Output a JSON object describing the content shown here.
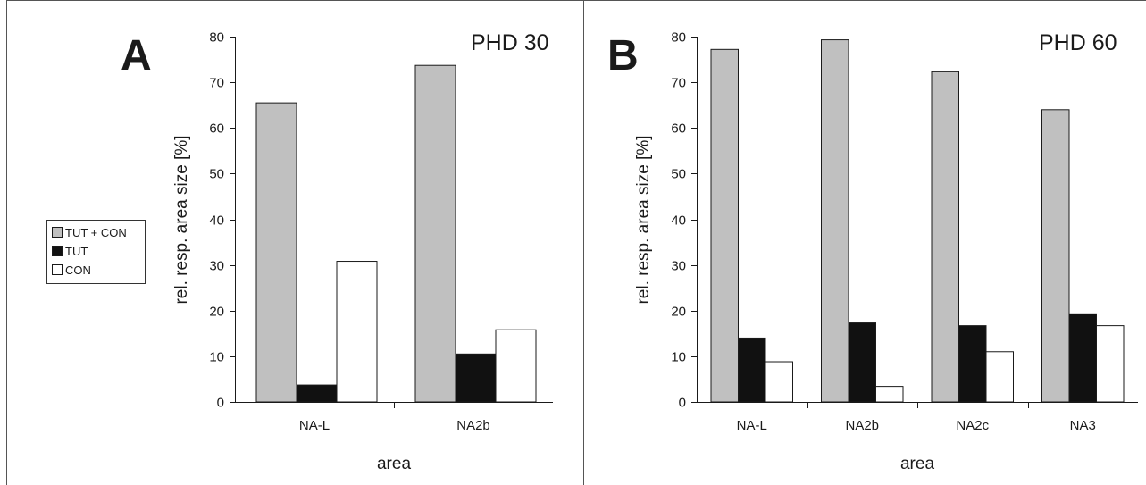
{
  "chart_data": [
    {
      "type": "bar",
      "panel_label": "A",
      "title": "PHD 30",
      "xlabel": "area",
      "ylabel": "rel. resp. area size [%]",
      "ylim": [
        0,
        80
      ],
      "yticks": [
        0,
        10,
        20,
        30,
        40,
        50,
        60,
        70,
        80
      ],
      "grid": false,
      "categories": [
        "NA-L",
        "NA2b"
      ],
      "series": [
        {
          "name": "TUT + CON",
          "values": [
            65.5,
            73.7
          ]
        },
        {
          "name": "TUT",
          "values": [
            3.7,
            10.5
          ]
        },
        {
          "name": "CON",
          "values": [
            30.8,
            15.8
          ]
        }
      ]
    },
    {
      "type": "bar",
      "panel_label": "B",
      "title": "PHD 60",
      "xlabel": "area",
      "ylabel": "rel. resp. area size [%]",
      "ylim": [
        0,
        80
      ],
      "yticks": [
        0,
        10,
        20,
        30,
        40,
        50,
        60,
        70,
        80
      ],
      "grid": false,
      "categories": [
        "NA-L",
        "NA2b",
        "NA2c",
        "NA3"
      ],
      "series": [
        {
          "name": "TUT + CON",
          "values": [
            77.2,
            79.3,
            72.3,
            64.0
          ]
        },
        {
          "name": "TUT",
          "values": [
            14.0,
            17.3,
            16.7,
            19.3
          ]
        },
        {
          "name": "CON",
          "values": [
            8.8,
            3.4,
            11.0,
            16.7
          ]
        }
      ]
    }
  ],
  "legend": {
    "placement": "left",
    "items": [
      {
        "label": "TUT + CON",
        "color": "#c0c0c0"
      },
      {
        "label": "TUT",
        "color": "#111111"
      },
      {
        "label": "CON",
        "color": "#ffffff"
      }
    ]
  },
  "colors": {
    "TUT + CON": "#c0c0c0",
    "TUT": "#111111",
    "CON": "#ffffff",
    "outline": "#1a1a1a",
    "frame": "#555555"
  }
}
